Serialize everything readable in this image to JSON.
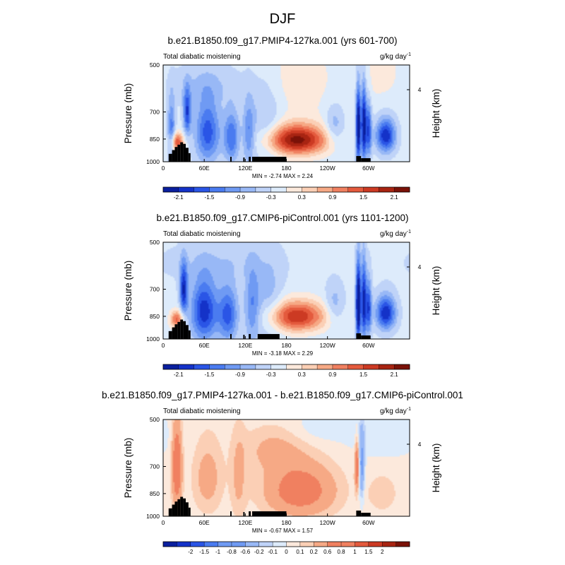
{
  "figure": {
    "title": "DJF",
    "colors": {
      "blue_to_red": [
        "#0a1f9e",
        "#1432c8",
        "#2a55e6",
        "#4a7bf0",
        "#6f9af3",
        "#98b8f6",
        "#bfd3f8",
        "#ddebfb",
        "#fce9dc",
        "#fbcfb5",
        "#f6a985",
        "#f08060",
        "#e45a3d",
        "#cc3a23",
        "#a82412",
        "#7a1208"
      ]
    }
  },
  "chart_data": [
    {
      "type": "heatmap",
      "title": "b.e21.B1850.f09_g17.PMIP4-127ka.001 (yrs 601-700)",
      "left_label": "Total diabatic moistening",
      "units_base": "g/kg day",
      "units_exp": "-1",
      "ylabel": "Pressure (mb)",
      "right_label": "Height (km)",
      "x_ticks": [
        "0",
        "60E",
        "120E",
        "180",
        "120W",
        "60W"
      ],
      "x_tick_values": [
        0,
        60,
        120,
        180,
        240,
        300
      ],
      "xlim": [
        0,
        360
      ],
      "y_ticks": [
        "500",
        "700",
        "850",
        "1000"
      ],
      "y_tick_values": [
        500,
        700,
        850,
        1000
      ],
      "ylim": [
        500,
        1000
      ],
      "y_scale": "log-pressure",
      "right_ticks": [
        "4"
      ],
      "stats": "MIN =  -2.74  MAX =   2.24",
      "colorbar_labels": [
        "-2.1",
        "-1.5",
        "-0.9",
        "-0.3",
        "0.3",
        "0.9",
        "1.5",
        "2.1"
      ],
      "levels": [
        -2.4,
        -2.1,
        -1.8,
        -1.5,
        -1.2,
        -0.9,
        -0.6,
        -0.3,
        0,
        0.3,
        0.6,
        0.9,
        1.2,
        1.5,
        1.8,
        2.1,
        2.4
      ],
      "min": -2.74,
      "max": 2.24,
      "base": -0.18,
      "features": [
        {
          "x": 195,
          "p": 855,
          "sx": 32,
          "sp": 65,
          "a": 2.4
        },
        {
          "x": 20,
          "p": 870,
          "sx": 7,
          "sp": 40,
          "a": 1.7
        },
        {
          "x": 12,
          "p": 800,
          "sx": 4,
          "sp": 120,
          "a": -1.2
        },
        {
          "x": 35,
          "p": 700,
          "sx": 4,
          "sp": 80,
          "a": -1.6
        },
        {
          "x": 65,
          "p": 810,
          "sx": 13,
          "sp": 130,
          "a": -1.5
        },
        {
          "x": 100,
          "p": 840,
          "sx": 8,
          "sp": 110,
          "a": -1.3
        },
        {
          "x": 125,
          "p": 820,
          "sx": 6,
          "sp": 130,
          "a": -1.0
        },
        {
          "x": 150,
          "p": 780,
          "sx": 16,
          "sp": 150,
          "a": -0.6
        },
        {
          "x": 60,
          "p": 580,
          "sx": 40,
          "sp": 60,
          "a": -0.4
        },
        {
          "x": 285,
          "p": 780,
          "sx": 2.5,
          "sp": 150,
          "a": -2.5
        },
        {
          "x": 293,
          "p": 770,
          "sx": 2.5,
          "sp": 150,
          "a": -2.2
        },
        {
          "x": 300,
          "p": 800,
          "sx": 3,
          "sp": 110,
          "a": -1.6
        },
        {
          "x": 325,
          "p": 830,
          "sx": 10,
          "sp": 70,
          "a": -1.9
        },
        {
          "x": 250,
          "p": 780,
          "sx": 10,
          "sp": 80,
          "a": -0.7
        },
        {
          "x": 200,
          "p": 560,
          "sx": 35,
          "sp": 120,
          "a": 0.35
        },
        {
          "x": 320,
          "p": 540,
          "sx": 25,
          "sp": 80,
          "a": 0.3
        }
      ],
      "topography": [
        {
          "x0": 8,
          "x1": 13,
          "p": 945
        },
        {
          "x0": 13,
          "x1": 17,
          "p": 920
        },
        {
          "x0": 17,
          "x1": 21,
          "p": 900
        },
        {
          "x0": 21,
          "x1": 25,
          "p": 885
        },
        {
          "x0": 25,
          "x1": 29,
          "p": 870
        },
        {
          "x0": 29,
          "x1": 33,
          "p": 880
        },
        {
          "x0": 33,
          "x1": 37,
          "p": 905
        },
        {
          "x0": 37,
          "x1": 40,
          "p": 940
        },
        {
          "x0": 98,
          "x1": 100,
          "p": 965
        },
        {
          "x0": 117,
          "x1": 119,
          "p": 970
        },
        {
          "x0": 125,
          "x1": 128,
          "p": 965
        },
        {
          "x0": 130,
          "x1": 180,
          "p": 965
        },
        {
          "x0": 282,
          "x1": 289,
          "p": 960
        },
        {
          "x0": 289,
          "x1": 303,
          "p": 975
        }
      ]
    },
    {
      "type": "heatmap",
      "title": "b.e21.B1850.f09_g17.CMIP6-piControl.001 (yrs 1101-1200)",
      "left_label": "Total diabatic moistening",
      "units_base": "g/kg day",
      "units_exp": "-1",
      "ylabel": "Pressure (mb)",
      "right_label": "Height (km)",
      "x_ticks": [
        "0",
        "60E",
        "120E",
        "180",
        "120W",
        "60W"
      ],
      "x_tick_values": [
        0,
        60,
        120,
        180,
        240,
        300
      ],
      "xlim": [
        0,
        360
      ],
      "y_ticks": [
        "500",
        "700",
        "850",
        "1000"
      ],
      "y_tick_values": [
        500,
        700,
        850,
        1000
      ],
      "ylim": [
        500,
        1000
      ],
      "y_scale": "log-pressure",
      "right_ticks": [
        "4"
      ],
      "stats": "MIN =  -3.18  MAX =   2.29",
      "colorbar_labels": [
        "-2.1",
        "-1.5",
        "-0.9",
        "-0.3",
        "0.3",
        "0.9",
        "1.5",
        "2.1"
      ],
      "levels": [
        -2.4,
        -2.1,
        -1.8,
        -1.5,
        -1.2,
        -0.9,
        -0.6,
        -0.3,
        0,
        0.3,
        0.6,
        0.9,
        1.2,
        1.5,
        1.8,
        2.1,
        2.4
      ],
      "min": -3.18,
      "max": 2.29,
      "base": -0.2,
      "features": [
        {
          "x": 195,
          "p": 850,
          "sx": 30,
          "sp": 65,
          "a": 2.0
        },
        {
          "x": 20,
          "p": 870,
          "sx": 7,
          "sp": 40,
          "a": 1.5
        },
        {
          "x": 30,
          "p": 700,
          "sx": 4,
          "sp": 90,
          "a": -1.8
        },
        {
          "x": 60,
          "p": 820,
          "sx": 14,
          "sp": 130,
          "a": -1.8
        },
        {
          "x": 95,
          "p": 840,
          "sx": 10,
          "sp": 120,
          "a": -1.4
        },
        {
          "x": 130,
          "p": 800,
          "sx": 8,
          "sp": 150,
          "a": -1.0
        },
        {
          "x": 155,
          "p": 780,
          "sx": 14,
          "sp": 150,
          "a": -0.6
        },
        {
          "x": 80,
          "p": 580,
          "sx": 60,
          "sp": 60,
          "a": -0.3
        },
        {
          "x": 285,
          "p": 780,
          "sx": 2.5,
          "sp": 150,
          "a": -2.8
        },
        {
          "x": 293,
          "p": 770,
          "sx": 2.5,
          "sp": 150,
          "a": -2.0
        },
        {
          "x": 300,
          "p": 800,
          "sx": 3,
          "sp": 110,
          "a": -1.6
        },
        {
          "x": 325,
          "p": 830,
          "sx": 10,
          "sp": 70,
          "a": -1.9
        },
        {
          "x": 250,
          "p": 780,
          "sx": 10,
          "sp": 80,
          "a": -0.6
        }
      ],
      "topography": [
        {
          "x0": 8,
          "x1": 13,
          "p": 945
        },
        {
          "x0": 13,
          "x1": 17,
          "p": 920
        },
        {
          "x0": 17,
          "x1": 21,
          "p": 900
        },
        {
          "x0": 21,
          "x1": 25,
          "p": 885
        },
        {
          "x0": 25,
          "x1": 29,
          "p": 870
        },
        {
          "x0": 29,
          "x1": 33,
          "p": 880
        },
        {
          "x0": 33,
          "x1": 37,
          "p": 905
        },
        {
          "x0": 37,
          "x1": 40,
          "p": 940
        },
        {
          "x0": 98,
          "x1": 100,
          "p": 965
        },
        {
          "x0": 117,
          "x1": 119,
          "p": 970
        },
        {
          "x0": 125,
          "x1": 128,
          "p": 965
        },
        {
          "x0": 138,
          "x1": 170,
          "p": 965
        },
        {
          "x0": 282,
          "x1": 289,
          "p": 960
        },
        {
          "x0": 289,
          "x1": 303,
          "p": 975
        }
      ]
    },
    {
      "type": "heatmap",
      "title": "b.e21.B1850.f09_g17.PMIP4-127ka.001 - b.e21.B1850.f09_g17.CMIP6-piControl.001",
      "left_label": "Total diabatic moistening",
      "units_base": "g/kg day",
      "units_exp": "-1",
      "ylabel": "Pressure (mb)",
      "right_label": "Height (km)",
      "x_ticks": [
        "0",
        "60E",
        "120E",
        "180",
        "120W",
        "60W"
      ],
      "x_tick_values": [
        0,
        60,
        120,
        180,
        240,
        300
      ],
      "xlim": [
        0,
        360
      ],
      "y_ticks": [
        "500",
        "700",
        "850",
        "1000"
      ],
      "y_tick_values": [
        500,
        700,
        850,
        1000
      ],
      "ylim": [
        500,
        1000
      ],
      "y_scale": "log-pressure",
      "right_ticks": [
        "4"
      ],
      "stats": "MIN =  -0.67  MAX =   1.57",
      "colorbar_labels": [
        "-2",
        "-1.5",
        "-1",
        "-0.8",
        "-0.6",
        "-0.2",
        "-0.1",
        "0",
        "0.1",
        "0.2",
        "0.6",
        "0.8",
        "1",
        "1.5",
        "2"
      ],
      "levels": [
        -2.5,
        -2,
        -1.5,
        -1,
        -0.8,
        -0.6,
        -0.4,
        -0.2,
        -0.1,
        0,
        0.1,
        0.2,
        0.4,
        0.6,
        0.8,
        1,
        1.5,
        2,
        2.5
      ],
      "min": -0.67,
      "max": 1.57,
      "base": 0.03,
      "features": [
        {
          "x": 200,
          "p": 830,
          "sx": 35,
          "sp": 110,
          "a": 0.55
        },
        {
          "x": 20,
          "p": 700,
          "sx": 5,
          "sp": 150,
          "a": 0.65
        },
        {
          "x": 65,
          "p": 760,
          "sx": 15,
          "sp": 140,
          "a": 0.25
        },
        {
          "x": 110,
          "p": 760,
          "sx": 8,
          "sp": 170,
          "a": 0.2
        },
        {
          "x": 160,
          "p": 620,
          "sx": 30,
          "sp": 70,
          "a": 0.2
        },
        {
          "x": 283,
          "p": 700,
          "sx": 2,
          "sp": 80,
          "a": 0.7
        },
        {
          "x": 290,
          "p": 700,
          "sx": 3,
          "sp": 120,
          "a": -0.5
        },
        {
          "x": 320,
          "p": 560,
          "sx": 35,
          "sp": 60,
          "a": -0.12
        },
        {
          "x": 230,
          "p": 530,
          "sx": 30,
          "sp": 40,
          "a": -0.1
        },
        {
          "x": 320,
          "p": 850,
          "sx": 15,
          "sp": 80,
          "a": 0.15
        }
      ],
      "topography": [
        {
          "x0": 8,
          "x1": 13,
          "p": 945
        },
        {
          "x0": 13,
          "x1": 17,
          "p": 920
        },
        {
          "x0": 17,
          "x1": 21,
          "p": 900
        },
        {
          "x0": 21,
          "x1": 25,
          "p": 885
        },
        {
          "x0": 25,
          "x1": 29,
          "p": 870
        },
        {
          "x0": 29,
          "x1": 33,
          "p": 880
        },
        {
          "x0": 33,
          "x1": 37,
          "p": 905
        },
        {
          "x0": 37,
          "x1": 40,
          "p": 940
        },
        {
          "x0": 98,
          "x1": 100,
          "p": 965
        },
        {
          "x0": 117,
          "x1": 119,
          "p": 970
        },
        {
          "x0": 125,
          "x1": 128,
          "p": 965
        },
        {
          "x0": 130,
          "x1": 180,
          "p": 965
        },
        {
          "x0": 282,
          "x1": 289,
          "p": 960
        },
        {
          "x0": 289,
          "x1": 303,
          "p": 975
        }
      ]
    }
  ]
}
